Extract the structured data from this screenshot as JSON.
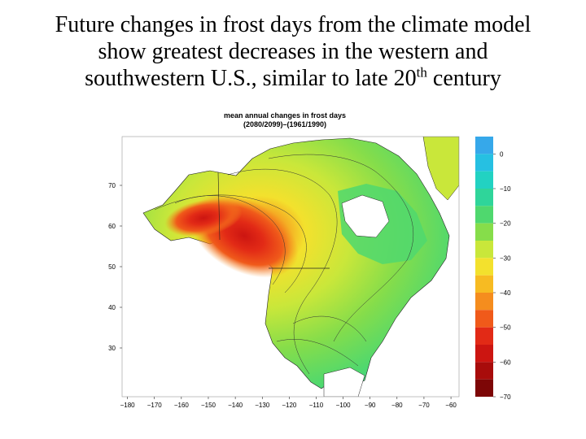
{
  "slide": {
    "title_line1": "Future changes in frost days from the climate model",
    "title_line2": "show greatest decreases in the western and",
    "title_line3_pre": "southwestern U.S., similar to late 20",
    "title_line3_sup": "th",
    "title_line3_post": " century"
  },
  "chart_data": {
    "type": "heatmap",
    "title": "mean annual changes in frost days",
    "subtitle": "(2080/2099)–(1961/1990)",
    "xlabel": "",
    "ylabel": "",
    "x_ticks": [
      -180,
      -170,
      -160,
      -150,
      -140,
      -130,
      -120,
      -110,
      -100,
      -90,
      -80,
      -70,
      -60
    ],
    "y_ticks": [
      70,
      60,
      50,
      40,
      30
    ],
    "x_labels": [
      "−180",
      "−170",
      "−160",
      "−150",
      "−140",
      "−130",
      "−120",
      "−110",
      "−100",
      "−90",
      "−80",
      "−70",
      "−60"
    ],
    "y_labels": [
      "70",
      "60",
      "50",
      "40",
      "30"
    ],
    "xlim": [
      -182,
      -57
    ],
    "ylim": [
      18,
      82
    ],
    "colorbar": {
      "min": -70,
      "max": 5,
      "ticks": [
        0,
        -10,
        -20,
        -30,
        -40,
        -50,
        -60,
        -70
      ],
      "tick_labels": [
        "0",
        "−10",
        "−20",
        "−30",
        "−40",
        "−50",
        "−60",
        "−70"
      ],
      "bands": [
        {
          "upper": 5,
          "lower": 0,
          "color": "#36a8ea"
        },
        {
          "upper": 0,
          "lower": -5,
          "color": "#26c0e2"
        },
        {
          "upper": -5,
          "lower": -10,
          "color": "#22d2c2"
        },
        {
          "upper": -10,
          "lower": -15,
          "color": "#2fd59a"
        },
        {
          "upper": -15,
          "lower": -20,
          "color": "#4fd86e"
        },
        {
          "upper": -20,
          "lower": -25,
          "color": "#86dd4a"
        },
        {
          "upper": -25,
          "lower": -30,
          "color": "#c9e73a"
        },
        {
          "upper": -30,
          "lower": -35,
          "color": "#f3e12d"
        },
        {
          "upper": -35,
          "lower": -40,
          "color": "#f7bb22"
        },
        {
          "upper": -40,
          "lower": -45,
          "color": "#f58d1e"
        },
        {
          "upper": -45,
          "lower": -50,
          "color": "#f05a1a"
        },
        {
          "upper": -50,
          "lower": -55,
          "color": "#e22a16"
        },
        {
          "upper": -55,
          "lower": -60,
          "color": "#cc1511"
        },
        {
          "upper": -60,
          "lower": -65,
          "color": "#a80c0b"
        },
        {
          "upper": -65,
          "lower": -70,
          "color": "#7d0606"
        }
      ]
    }
  }
}
